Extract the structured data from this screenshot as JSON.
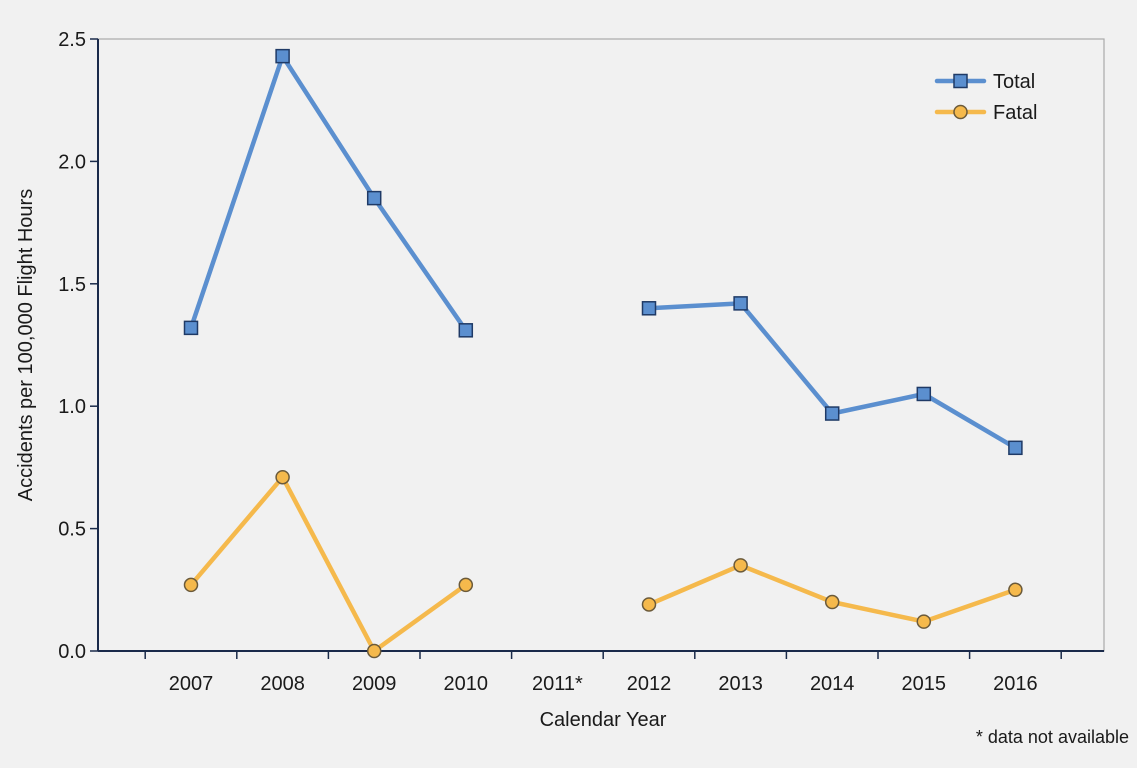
{
  "chart_data": {
    "type": "line",
    "title": "",
    "xlabel": "Calendar Year",
    "ylabel": "Accidents per 100,000 Flight Hours",
    "categories": [
      "2007",
      "2008",
      "2009",
      "2010",
      "2011*",
      "2012",
      "2013",
      "2014",
      "2015",
      "2016"
    ],
    "ylim": [
      0,
      2.5
    ],
    "yticks": [
      "0.0",
      "0.5",
      "1.0",
      "1.5",
      "2.0",
      "2.5"
    ],
    "grid": false,
    "legend_position": "top-right",
    "footnote": "* data not available",
    "series": [
      {
        "name": "Total",
        "color": "#5b8fcf",
        "marker": "square",
        "values": [
          1.32,
          2.43,
          1.85,
          1.31,
          null,
          1.4,
          1.42,
          0.97,
          1.05,
          0.83
        ]
      },
      {
        "name": "Fatal",
        "color": "#f5b94c",
        "marker": "circle",
        "values": [
          0.27,
          0.71,
          0.0,
          0.27,
          null,
          0.19,
          0.35,
          0.2,
          0.12,
          0.25
        ]
      }
    ]
  }
}
